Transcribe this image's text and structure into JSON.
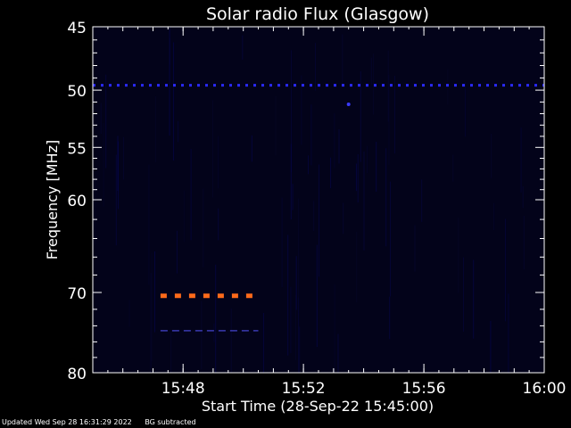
{
  "chart_data": {
    "type": "heatmap",
    "title": "Solar radio Flux (Glasgow)",
    "xlabel": "Start Time (28-Sep-22 15:45:00)",
    "ylabel": "Frequency [MHz]",
    "x_ticks": [
      "15:48",
      "15:52",
      "15:56",
      "16:00"
    ],
    "y_ticks": [
      45,
      50,
      55,
      60,
      70,
      80
    ],
    "xlim": [
      "15:45",
      "16:00"
    ],
    "ylim": [
      80,
      45
    ],
    "y_scale": "log",
    "colors": {
      "background": "#000000",
      "plot_background": "#03031a",
      "interference_line": "#2a2aff",
      "dashed_band": "#ff6a1a",
      "faint_band": "#3a3ab0",
      "axes": "#ffffff"
    },
    "features": [
      {
        "name": "interference",
        "frequency_mhz": 49.6,
        "start": "15:45",
        "end": "16:00",
        "color": "#2a2aff",
        "style": "dotted"
      },
      {
        "name": "interference",
        "frequency_mhz": 70.4,
        "start": "15:47:15",
        "end": "15:50:30",
        "color": "#ff6a1a",
        "style": "dashed"
      },
      {
        "name": "interference",
        "frequency_mhz": 74.6,
        "start": "15:47:15",
        "end": "15:50:30",
        "color": "#3a3ab0",
        "style": "dashed"
      }
    ]
  },
  "footer": {
    "updated": "Updated Wed Sep 28 16:31:29 2022",
    "note": "BG subtracted"
  }
}
